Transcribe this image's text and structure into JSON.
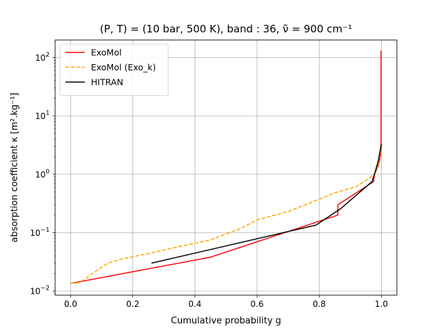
{
  "chart_data": {
    "type": "line",
    "title": "(P, T) = (10 bar, 500 K), band : 36, ν̃ = 900 cm⁻¹",
    "xlabel": "Cumulative probability g",
    "ylabel": "absorption coefficient κ [m².kg⁻¹]",
    "xlim": [
      -0.05,
      1.05
    ],
    "ylim": [
      0.0085,
      200
    ],
    "yscale": "log",
    "grid": true,
    "legend_position": "top-left",
    "x_ticks": [
      {
        "value": 0.0,
        "label": "0.0"
      },
      {
        "value": 0.2,
        "label": "0.2"
      },
      {
        "value": 0.4,
        "label": "0.4"
      },
      {
        "value": 0.6,
        "label": "0.6"
      },
      {
        "value": 0.8,
        "label": "0.8"
      },
      {
        "value": 1.0,
        "label": "1.0"
      }
    ],
    "y_ticks": [
      {
        "value": 0.01,
        "base": "10",
        "exp": "−2"
      },
      {
        "value": 0.1,
        "base": "10",
        "exp": "−1"
      },
      {
        "value": 1,
        "base": "10",
        "exp": "0"
      },
      {
        "value": 10,
        "base": "10",
        "exp": "1"
      },
      {
        "value": 100,
        "base": "10",
        "exp": "2"
      }
    ],
    "series": [
      {
        "name": "ExoMol",
        "color": "#ff0000",
        "style": "solid",
        "x": [
          0.0,
          0.45,
          0.86,
          0.86,
          0.975,
          0.978,
          0.99,
          0.995,
          0.999,
          0.999,
          1.0
        ],
        "y": [
          0.0135,
          0.038,
          0.2,
          0.3,
          0.75,
          1.0,
          1.4,
          1.8,
          2.5,
          130,
          130
        ]
      },
      {
        "name": "ExoMol (Exo_k)",
        "color": "#ffa500",
        "style": "dashed",
        "x": [
          0.0,
          0.03,
          0.07,
          0.12,
          0.16,
          0.26,
          0.33,
          0.45,
          0.55,
          0.6,
          0.7,
          0.78,
          0.85,
          0.92,
          0.96,
          0.98,
          0.99,
          1.0
        ],
        "y": [
          0.0135,
          0.014,
          0.02,
          0.03,
          0.035,
          0.045,
          0.055,
          0.075,
          0.12,
          0.165,
          0.23,
          0.34,
          0.48,
          0.62,
          0.85,
          1.05,
          1.5,
          2.8
        ]
      },
      {
        "name": "HITRAN",
        "color": "#000000",
        "style": "solid",
        "x": [
          0.26,
          0.79,
          0.87,
          0.97,
          0.98,
          0.99,
          1.0
        ],
        "y": [
          0.03,
          0.135,
          0.26,
          0.75,
          1.1,
          1.7,
          3.3
        ]
      }
    ]
  }
}
